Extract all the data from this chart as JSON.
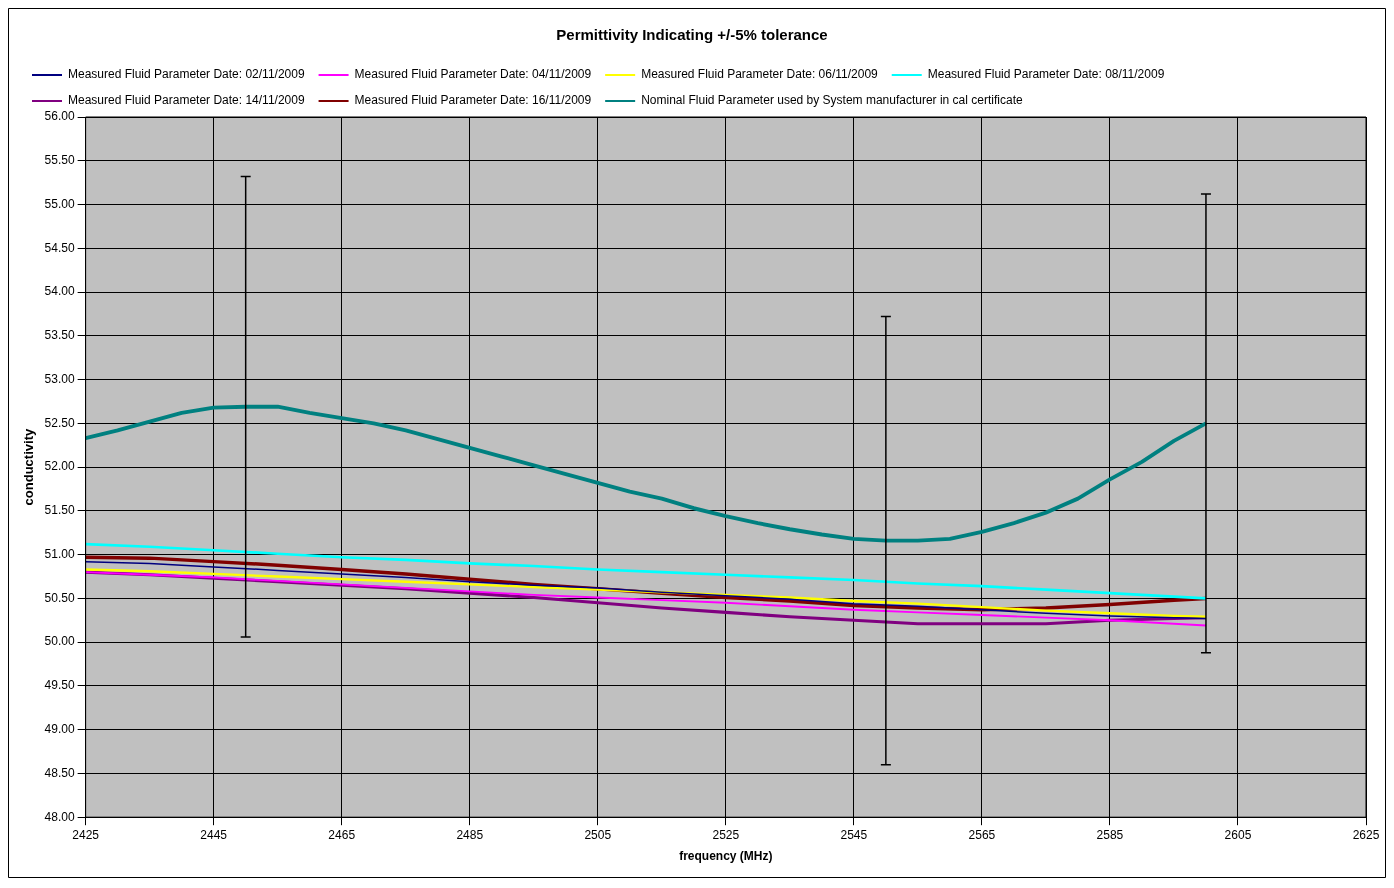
{
  "chart_data": {
    "type": "line",
    "title": "Permittivity Indicating +/-5% tolerance",
    "xlabel": "frequency (MHz)",
    "ylabel": "conductivity",
    "x": [
      2425,
      2435,
      2445,
      2455,
      2465,
      2475,
      2485,
      2495,
      2505,
      2515,
      2525,
      2535,
      2545,
      2555,
      2565,
      2575,
      2585,
      2595,
      2600
    ],
    "series": [
      {
        "name": "Measured Fluid Parameter Date: 02/11/2009",
        "color": "#000080",
        "values": [
          50.92,
          50.9,
          50.86,
          50.82,
          50.78,
          50.74,
          50.69,
          50.65,
          50.62,
          50.57,
          50.53,
          50.49,
          50.44,
          50.41,
          50.37,
          50.33,
          50.3,
          50.28,
          50.27
        ]
      },
      {
        "name": "Measured Fluid Parameter Date: 04/11/2009",
        "color": "#ff00ff",
        "values": [
          50.8,
          50.77,
          50.74,
          50.7,
          50.66,
          50.62,
          50.58,
          50.54,
          50.51,
          50.48,
          50.45,
          50.41,
          50.37,
          50.34,
          50.31,
          50.28,
          50.25,
          50.21,
          50.19
        ]
      },
      {
        "name": "Measured Fluid Parameter Date: 06/11/2009",
        "color": "#ffff00",
        "values": [
          50.83,
          50.81,
          50.78,
          50.75,
          50.72,
          50.69,
          50.66,
          50.63,
          50.6,
          50.57,
          50.54,
          50.51,
          50.47,
          50.44,
          50.4,
          50.36,
          50.33,
          50.3,
          50.29
        ]
      },
      {
        "name": "Measured Fluid Parameter Date: 08/11/2009",
        "color": "#00ffff",
        "values": [
          51.12,
          51.09,
          51.05,
          51.01,
          50.97,
          50.94,
          50.9,
          50.87,
          50.83,
          50.8,
          50.77,
          50.74,
          50.71,
          50.67,
          50.64,
          50.6,
          50.56,
          50.52,
          50.5
        ]
      },
      {
        "name": "Measured Fluid Parameter Date: 14/11/2009",
        "color": "#800080",
        "values": [
          50.8,
          50.77,
          50.73,
          50.69,
          50.65,
          50.61,
          50.56,
          50.51,
          50.45,
          50.39,
          50.34,
          50.29,
          50.25,
          50.21,
          50.21,
          50.21,
          50.25,
          50.27,
          50.28
        ]
      },
      {
        "name": "Measured Fluid Parameter Date: 16/11/2009",
        "color": "#800000",
        "values": [
          50.97,
          50.96,
          50.92,
          50.88,
          50.83,
          50.78,
          50.72,
          50.66,
          50.61,
          50.56,
          50.51,
          50.47,
          50.42,
          50.39,
          50.37,
          50.39,
          50.43,
          50.48,
          50.5
        ]
      },
      {
        "name": "Nominal Fluid Parameter used by System manufacturer in cal certificate",
        "color": "#008080",
        "x": [
          2425,
          2430,
          2435,
          2440,
          2445,
          2450,
          2455,
          2460,
          2465,
          2470,
          2475,
          2480,
          2485,
          2490,
          2495,
          2500,
          2505,
          2510,
          2515,
          2520,
          2525,
          2530,
          2535,
          2540,
          2545,
          2550,
          2555,
          2560,
          2565,
          2570,
          2575,
          2580,
          2585,
          2590,
          2595,
          2600
        ],
        "values": [
          52.33,
          52.42,
          52.52,
          52.62,
          52.68,
          52.69,
          52.69,
          52.62,
          52.56,
          52.5,
          52.42,
          52.32,
          52.22,
          52.12,
          52.02,
          51.92,
          51.82,
          51.72,
          51.64,
          51.53,
          51.44,
          51.36,
          51.29,
          51.23,
          51.18,
          51.16,
          51.16,
          51.18,
          51.26,
          51.36,
          51.48,
          51.64,
          51.86,
          52.06,
          52.3,
          52.5
        ],
        "errors": [
          null,
          null,
          null,
          null,
          null,
          2.63,
          null,
          null,
          null,
          null,
          null,
          null,
          null,
          null,
          null,
          null,
          null,
          null,
          null,
          null,
          null,
          null,
          null,
          null,
          null,
          2.56,
          null,
          null,
          null,
          null,
          null,
          null,
          null,
          null,
          null,
          2.62
        ]
      }
    ],
    "xlim": [
      2425,
      2625
    ],
    "xticks": [
      2425,
      2445,
      2465,
      2485,
      2505,
      2525,
      2545,
      2565,
      2585,
      2605,
      2625
    ],
    "ylim": [
      48,
      56
    ],
    "yticks": [
      {
        "value": 48,
        "label": "48.00"
      },
      {
        "value": 48.5,
        "label": "48.50"
      },
      {
        "value": 49,
        "label": "49.00"
      },
      {
        "value": 49.5,
        "label": "49.50"
      },
      {
        "value": 50,
        "label": "50.00"
      },
      {
        "value": 50.5,
        "label": "50.50"
      },
      {
        "value": 51,
        "label": "51.00"
      },
      {
        "value": 51.5,
        "label": "51.50"
      },
      {
        "value": 52,
        "label": "52.00"
      },
      {
        "value": 52.5,
        "label": "52.50"
      },
      {
        "value": 53,
        "label": "53.00"
      },
      {
        "value": 53.5,
        "label": "53.50"
      },
      {
        "value": 54,
        "label": "54.00"
      },
      {
        "value": 54.5,
        "label": "54.50"
      },
      {
        "value": 55,
        "label": "55.00"
      },
      {
        "value": 55.5,
        "label": "55.50"
      },
      {
        "value": 56,
        "label": "56.00"
      }
    ],
    "grid": true,
    "legend": "top",
    "marker": "none",
    "line_style": "solid"
  }
}
